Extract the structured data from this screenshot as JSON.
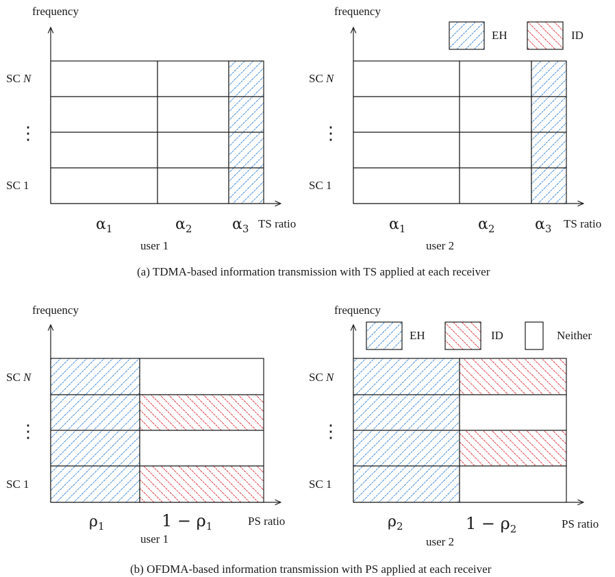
{
  "colors": {
    "eh": "#4a90d9",
    "id": "#e0434a",
    "line": "#1a1a1a"
  },
  "panel_a": {
    "caption": "(a) TDMA-based information transmission with TS applied at each receiver",
    "legend": {
      "eh": "EH",
      "id": "ID"
    },
    "user1": {
      "y_axis_label": "frequency",
      "x_axis_label": "TS ratio",
      "sc_top": {
        "prefix": "SC ",
        "var": "N"
      },
      "sc_bottom": "SC 1",
      "dots": "⋮",
      "slots": [
        {
          "sym": "α",
          "sub": "1"
        },
        {
          "sym": "α",
          "sub": "2"
        },
        {
          "sym": "α",
          "sub": "3"
        }
      ],
      "user_label": "user 1"
    },
    "user2": {
      "y_axis_label": "frequency",
      "x_axis_label": "TS ratio",
      "sc_top": {
        "prefix": "SC ",
        "var": "N"
      },
      "sc_bottom": "SC 1",
      "dots": "⋮",
      "slots": [
        {
          "sym": "α",
          "sub": "1"
        },
        {
          "sym": "α",
          "sub": "2"
        },
        {
          "sym": "α",
          "sub": "3"
        }
      ],
      "user_label": "user 2"
    }
  },
  "panel_b": {
    "caption": "(b) OFDMA-based information transmission with PS applied at each receiver",
    "legend": {
      "eh": "EH",
      "id": "ID",
      "neither": "Neither"
    },
    "user1": {
      "y_axis_label": "frequency",
      "x_axis_label": "PS ratio",
      "sc_top": {
        "prefix": "SC ",
        "var": "N"
      },
      "sc_bottom": "SC 1",
      "dots": "⋮",
      "left_col": {
        "sym": "ρ",
        "sub": "1"
      },
      "right_col": {
        "prefix": "1 − ",
        "sym": "ρ",
        "sub": "1"
      },
      "user_label": "user 1",
      "right_col_fill": [
        "neither",
        "id",
        "neither",
        "id"
      ]
    },
    "user2": {
      "y_axis_label": "frequency",
      "x_axis_label": "PS ratio",
      "sc_top": {
        "prefix": "SC ",
        "var": "N"
      },
      "sc_bottom": "SC 1",
      "dots": "⋮",
      "left_col": {
        "sym": "ρ",
        "sub": "2"
      },
      "right_col": {
        "prefix": "1 − ",
        "sym": "ρ",
        "sub": "2"
      },
      "user_label": "user 2",
      "right_col_fill": [
        "id",
        "neither",
        "id",
        "neither"
      ]
    }
  }
}
